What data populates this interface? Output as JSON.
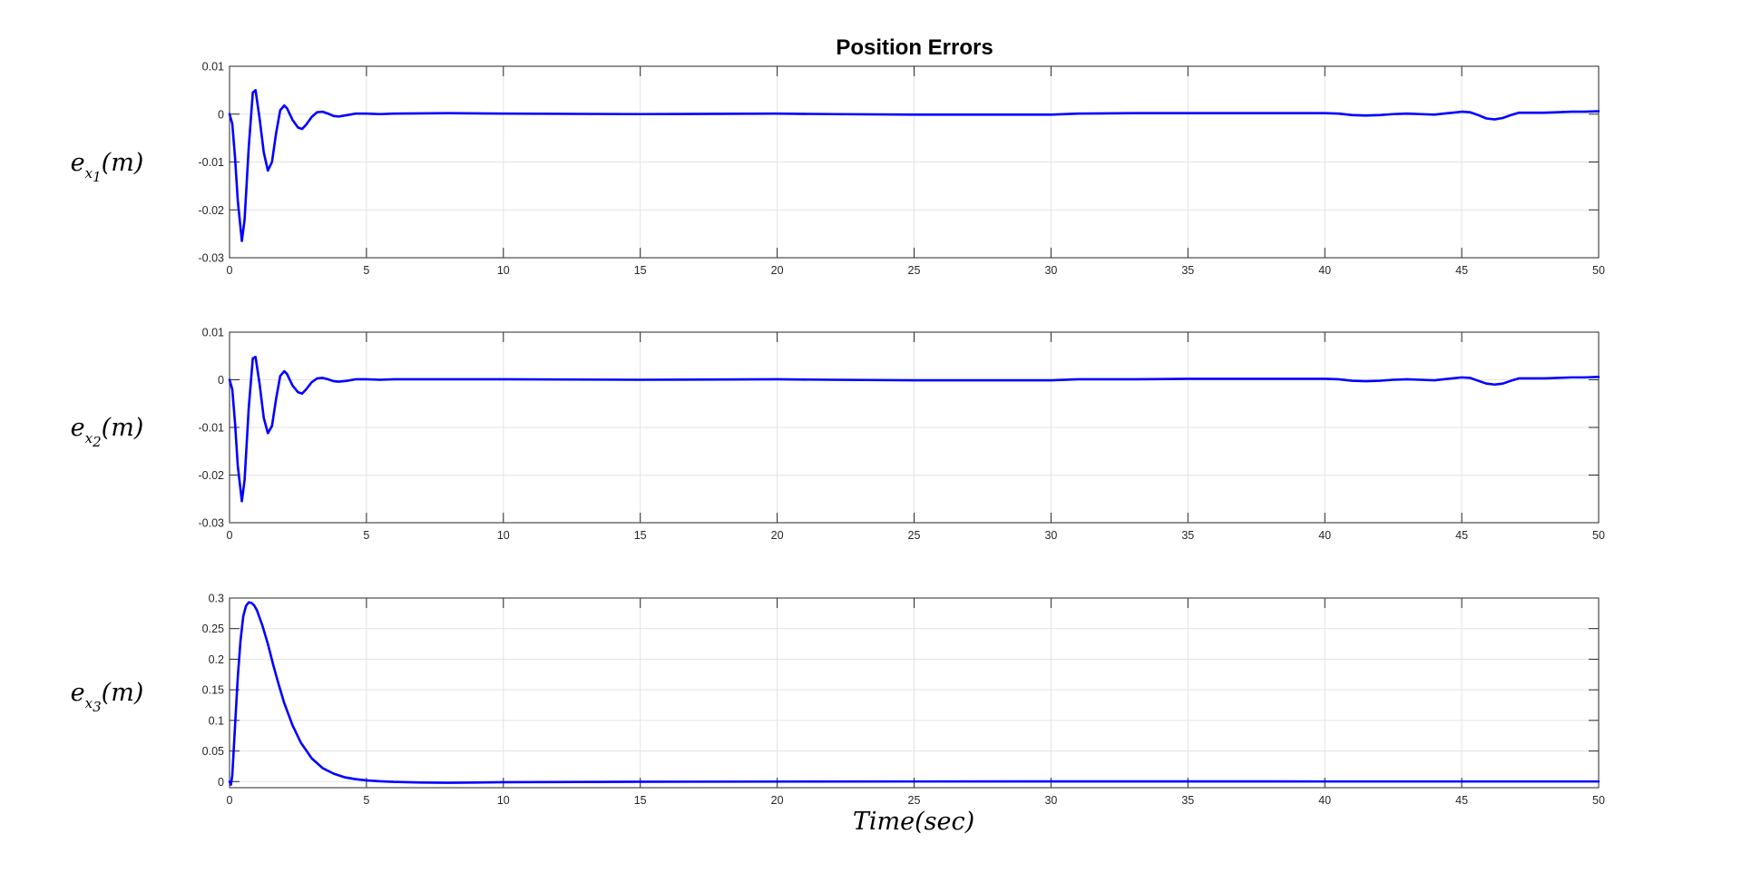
{
  "figure": {
    "title": "Position Errors",
    "xlabel_main": "Time",
    "xlabel_paren": "(sec)"
  },
  "chart_data": [
    {
      "type": "line",
      "ylabel": "e_x1(m)",
      "ylabel_parts": {
        "base": "e",
        "sub_var": "x",
        "sub_index": "1",
        "rest": "(m)"
      },
      "xlim": [
        0,
        50
      ],
      "ylim": [
        -0.03,
        0.01
      ],
      "xticks": [
        0,
        5,
        10,
        15,
        20,
        25,
        30,
        35,
        40,
        45,
        50
      ],
      "yticks": [
        -0.03,
        -0.02,
        -0.01,
        0,
        0.01
      ],
      "ytick_labels": [
        "-0.03",
        "-0.02",
        "-0.01",
        "0",
        "0.01"
      ],
      "grid": true,
      "series": [
        {
          "color": "#0000ff",
          "x": [
            0,
            0.1,
            0.2,
            0.3,
            0.45,
            0.55,
            0.7,
            0.85,
            0.95,
            1.1,
            1.25,
            1.4,
            1.55,
            1.7,
            1.85,
            2.0,
            2.1,
            2.3,
            2.5,
            2.65,
            2.8,
            3.0,
            3.2,
            3.4,
            3.6,
            3.8,
            4.0,
            4.3,
            4.6,
            5.0,
            5.5,
            6,
            8,
            10,
            15,
            20,
            22,
            25,
            28,
            30,
            31,
            33,
            35,
            37,
            40,
            40.5,
            41,
            41.5,
            42,
            42.5,
            43,
            43.5,
            44,
            44.5,
            45,
            45.3,
            45.6,
            45.9,
            46.2,
            46.5,
            46.8,
            47.1,
            47.5,
            48,
            48.5,
            49,
            49.5,
            50
          ],
          "y": [
            0,
            -0.002,
            -0.009,
            -0.018,
            -0.0265,
            -0.022,
            -0.007,
            0.0045,
            0.005,
            -0.001,
            -0.008,
            -0.0118,
            -0.01,
            -0.004,
            0.0008,
            0.0018,
            0.0012,
            -0.0012,
            -0.0028,
            -0.0031,
            -0.0022,
            -0.0006,
            0.0004,
            0.0005,
            0.0001,
            -0.0004,
            -0.0005,
            -0.0002,
            0.0001,
            0.0001,
            0,
            0.0001,
            0.0002,
            0.0001,
            0,
            0.0001,
            0,
            -0.0001,
            -0.0001,
            -0.0001,
            0.0001,
            0.0002,
            0.0002,
            0.0002,
            0.0002,
            0.0001,
            -0.0002,
            -0.0003,
            -0.0002,
            0,
            0.0001,
            0,
            -0.0001,
            0.0002,
            0.0005,
            0.0004,
            -0.0002,
            -0.0009,
            -0.0011,
            -0.0008,
            -0.0002,
            0.0003,
            0.0003,
            0.0003,
            0.0004,
            0.0005,
            0.0005,
            0.0006
          ]
        }
      ]
    },
    {
      "type": "line",
      "ylabel": "e_x2(m)",
      "ylabel_parts": {
        "base": "e",
        "sub_var": "x",
        "sub_index": "2",
        "rest": "(m)"
      },
      "xlim": [
        0,
        50
      ],
      "ylim": [
        -0.03,
        0.01
      ],
      "xticks": [
        0,
        5,
        10,
        15,
        20,
        25,
        30,
        35,
        40,
        45,
        50
      ],
      "yticks": [
        -0.03,
        -0.02,
        -0.01,
        0,
        0.01
      ],
      "ytick_labels": [
        "-0.03",
        "-0.02",
        "-0.01",
        "0",
        "0.01"
      ],
      "grid": true,
      "series": [
        {
          "color": "#0000ff",
          "x": [
            0,
            0.1,
            0.2,
            0.3,
            0.45,
            0.55,
            0.7,
            0.85,
            0.95,
            1.1,
            1.25,
            1.4,
            1.55,
            1.7,
            1.85,
            2.0,
            2.1,
            2.3,
            2.5,
            2.65,
            2.8,
            3.0,
            3.2,
            3.4,
            3.6,
            3.8,
            4.0,
            4.3,
            4.6,
            5.0,
            5.5,
            6,
            8,
            10,
            15,
            20,
            22,
            25,
            28,
            30,
            31,
            33,
            35,
            37,
            40,
            40.5,
            41,
            41.5,
            42,
            42.5,
            43,
            43.5,
            44,
            44.5,
            45,
            45.3,
            45.6,
            45.9,
            46.2,
            46.5,
            46.8,
            47.1,
            47.5,
            48,
            48.5,
            49,
            49.5,
            50
          ],
          "y": [
            0,
            -0.002,
            -0.009,
            -0.018,
            -0.0255,
            -0.021,
            -0.006,
            0.0045,
            0.0048,
            -0.001,
            -0.008,
            -0.0112,
            -0.0097,
            -0.004,
            0.0008,
            0.0018,
            0.0012,
            -0.0012,
            -0.0026,
            -0.0029,
            -0.002,
            -0.0005,
            0.0003,
            0.0004,
            0.0001,
            -0.0003,
            -0.0004,
            -0.0002,
            0.0001,
            0.0001,
            0,
            0.0001,
            0.0001,
            0.0001,
            0,
            0.0001,
            0,
            -0.0001,
            -0.0001,
            -0.0001,
            0.0001,
            0.0001,
            0.0002,
            0.0002,
            0.0002,
            0.0001,
            -0.0002,
            -0.0003,
            -0.0002,
            0,
            0.0001,
            0,
            -0.0001,
            0.0002,
            0.0005,
            0.0004,
            -0.0002,
            -0.0008,
            -0.001,
            -0.0008,
            -0.0002,
            0.0003,
            0.0003,
            0.0003,
            0.0004,
            0.0005,
            0.0005,
            0.0006
          ]
        }
      ]
    },
    {
      "type": "line",
      "ylabel": "e_x3(m)",
      "ylabel_parts": {
        "base": "e",
        "sub_var": "x",
        "sub_index": "3",
        "rest": "(m)"
      },
      "xlim": [
        0,
        50
      ],
      "ylim": [
        -0.01,
        0.3
      ],
      "xticks": [
        0,
        5,
        10,
        15,
        20,
        25,
        30,
        35,
        40,
        45,
        50
      ],
      "yticks": [
        0,
        0.05,
        0.1,
        0.15,
        0.2,
        0.25,
        0.3
      ],
      "ytick_labels": [
        "0",
        "0.05",
        "0.1",
        "0.15",
        "0.2",
        "0.25",
        "0.3"
      ],
      "grid": true,
      "series": [
        {
          "color": "#0000ff",
          "x": [
            0,
            0.05,
            0.1,
            0.2,
            0.3,
            0.4,
            0.5,
            0.6,
            0.7,
            0.8,
            0.9,
            1.0,
            1.2,
            1.4,
            1.6,
            1.8,
            2.0,
            2.3,
            2.6,
            3.0,
            3.4,
            3.8,
            4.2,
            4.6,
            5.0,
            5.5,
            6.0,
            7.0,
            8.0,
            9.0,
            10,
            15,
            20,
            25,
            30,
            35,
            40,
            45,
            50
          ],
          "y": [
            0,
            -0.005,
            0.01,
            0.09,
            0.17,
            0.23,
            0.27,
            0.287,
            0.293,
            0.292,
            0.288,
            0.28,
            0.255,
            0.225,
            0.19,
            0.158,
            0.128,
            0.092,
            0.064,
            0.038,
            0.022,
            0.013,
            0.007,
            0.004,
            0.002,
            0.0005,
            -0.0005,
            -0.0015,
            -0.002,
            -0.0015,
            -0.001,
            -0.0003,
            0,
            0.0002,
            0.0003,
            0.0003,
            0.0002,
            0.0002,
            0.0002
          ]
        }
      ]
    }
  ]
}
